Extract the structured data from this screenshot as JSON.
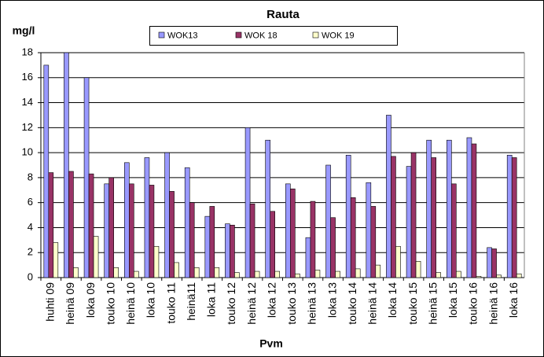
{
  "chart_data": {
    "type": "bar",
    "title": "Rauta",
    "y_label": "mg/l",
    "x_label": "Pvm",
    "categories": [
      "huhti 09",
      "heinä 09",
      "loka 09",
      "touko 10",
      "heinä 10",
      "loka 10",
      "touko 11",
      "heinä11",
      "loka 11",
      "touko 12",
      "heinä 12",
      "loka 12",
      "touko 13",
      "heinä 13",
      "loka 13",
      "touko 14",
      "heinä 14",
      "loka 14",
      "touko 15",
      "heinä 15",
      "loka 15",
      "touko 16",
      "heinä 16",
      "loka 16"
    ],
    "series": [
      {
        "name": "WOK13",
        "color": "#9999ff",
        "values": [
          17,
          18,
          16,
          7.5,
          9.2,
          9.6,
          10,
          8.8,
          4.9,
          4.3,
          12,
          11,
          7.5,
          3.2,
          9,
          9.8,
          7.6,
          13,
          8.9,
          11,
          11,
          11.2,
          2.4,
          9.8
        ]
      },
      {
        "name": "WOK 18",
        "color": "#993366",
        "values": [
          8.4,
          8.5,
          8.3,
          8,
          7.5,
          7.4,
          6.9,
          6,
          5.7,
          4.2,
          5.9,
          5.3,
          7.1,
          6.1,
          4.8,
          6.4,
          5.7,
          9.7,
          10,
          9.6,
          7.5,
          10.7,
          2.3,
          9.6
        ]
      },
      {
        "name": "WOK 19",
        "color": "#ffffcc",
        "values": [
          2.8,
          0.8,
          3.3,
          0.8,
          0.5,
          2.5,
          1.2,
          0.8,
          0.8,
          0.4,
          0.5,
          0.5,
          0.3,
          0.6,
          0.5,
          0.7,
          1.0,
          2.5,
          1.3,
          0.4,
          0.5,
          0.1,
          0.2,
          0.3
        ]
      }
    ],
    "ylim": [
      0,
      18
    ],
    "yticks": [
      0,
      2,
      4,
      6,
      8,
      10,
      12,
      14,
      16,
      18
    ],
    "grid": true,
    "legend": "top"
  }
}
